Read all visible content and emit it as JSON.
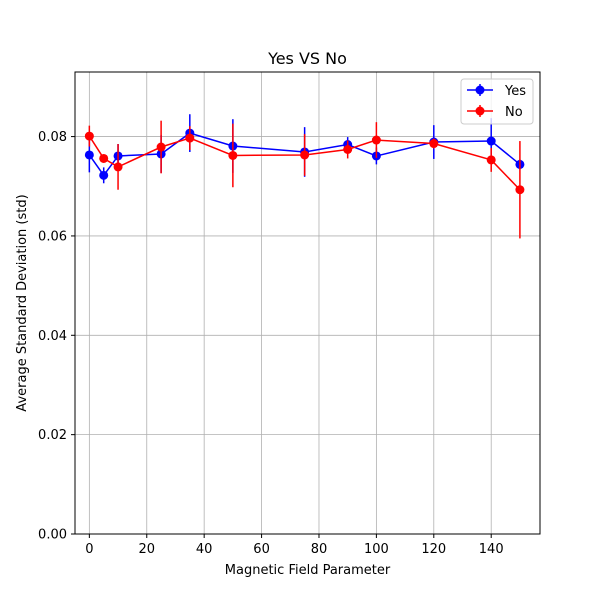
{
  "chart_data": {
    "type": "line",
    "title": "Yes VS No",
    "xlabel": "Magnetic Field Parameter",
    "ylabel": "Average Standard Deviation (std)",
    "xlim": [
      -5,
      157
    ],
    "ylim": [
      0,
      0.093
    ],
    "xticks": [
      0,
      20,
      40,
      60,
      80,
      100,
      120,
      140
    ],
    "yticks": [
      0.0,
      0.02,
      0.04,
      0.06,
      0.08
    ],
    "xtick_labels": [
      "0",
      "20",
      "40",
      "60",
      "80",
      "100",
      "120",
      "140"
    ],
    "ytick_labels": [
      "0.00",
      "0.02",
      "0.04",
      "0.06",
      "0.08"
    ],
    "grid": true,
    "legend_position": "top-right",
    "series": [
      {
        "name": "Yes",
        "color": "#0000ff",
        "x": [
          0,
          5,
          10,
          25,
          35,
          50,
          75,
          90,
          100,
          120,
          140,
          150
        ],
        "y": [
          0.0763,
          0.0722,
          0.0761,
          0.0765,
          0.0807,
          0.0781,
          0.0769,
          0.0784,
          0.0761,
          0.0789,
          0.0791,
          0.0744
        ],
        "err": [
          0.0035,
          0.0016,
          0.0024,
          0.0038,
          0.0038,
          0.0054,
          0.005,
          0.0015,
          0.0017,
          0.0034,
          0.0046,
          0.001
        ]
      },
      {
        "name": "No",
        "color": "#ff0000",
        "x": [
          0,
          5,
          10,
          25,
          35,
          50,
          75,
          90,
          100,
          120,
          140,
          150
        ],
        "y": [
          0.0801,
          0.0756,
          0.0739,
          0.0779,
          0.0797,
          0.0762,
          0.0763,
          0.0774,
          0.0793,
          0.0786,
          0.0753,
          0.0693
        ],
        "err": [
          0.0021,
          0.0005,
          0.0046,
          0.0053,
          0.0024,
          0.0064,
          0.0042,
          0.0018,
          0.0036,
          0.001,
          0.0024,
          0.0098
        ]
      }
    ]
  }
}
